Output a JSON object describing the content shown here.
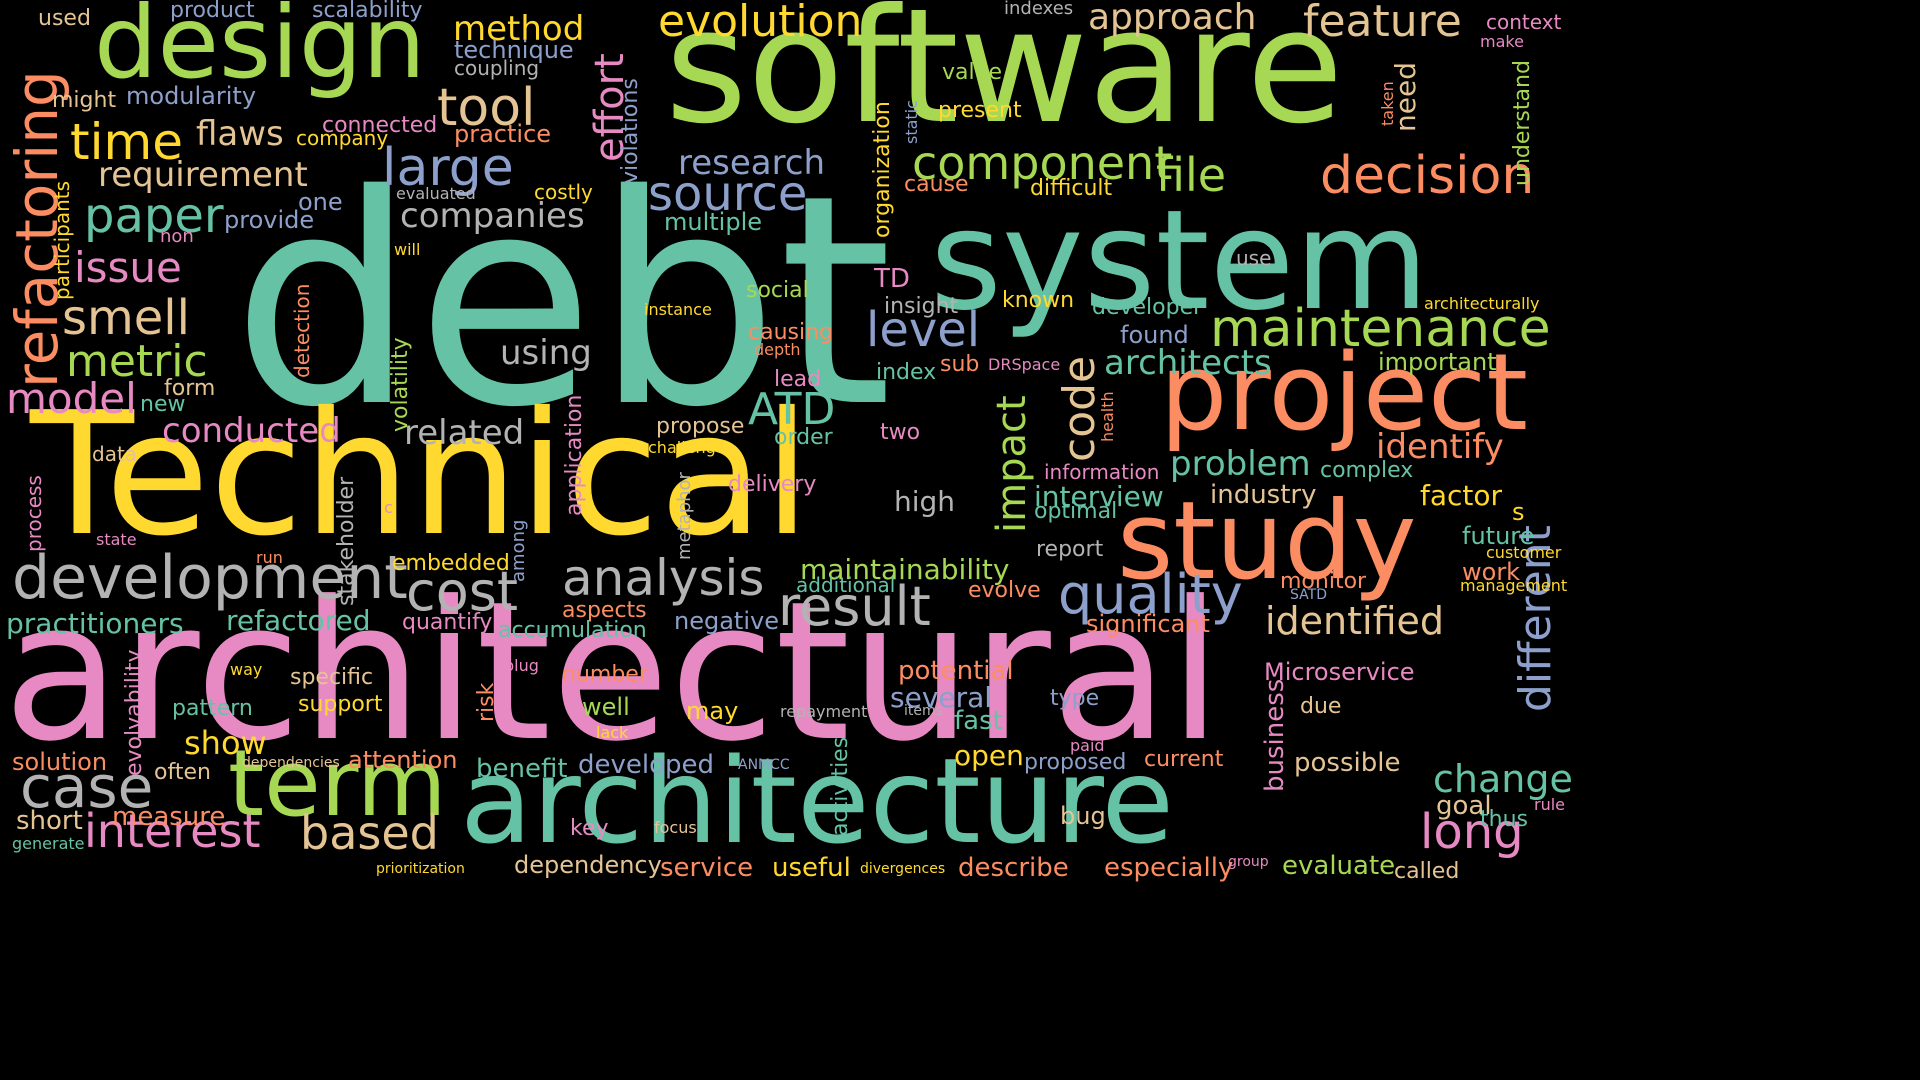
{
  "palette": {
    "background": "#000000",
    "teal": "#66c2a5",
    "orange": "#fc8d62",
    "blue": "#8da0cb",
    "pink": "#e78ac3",
    "green": "#a6d854",
    "yellow": "#ffd92f",
    "tan": "#e5c494",
    "gray": "#b3b3b3"
  },
  "words": [
    {
      "text": "debt",
      "color": "teal",
      "orientation": "horizontal"
    },
    {
      "text": "architectural",
      "color": "pink",
      "orientation": "horizontal"
    },
    {
      "text": "software",
      "color": "green",
      "orientation": "horizontal"
    },
    {
      "text": "Technical",
      "color": "yellow",
      "orientation": "horizontal"
    },
    {
      "text": "system",
      "color": "teal",
      "orientation": "horizontal"
    },
    {
      "text": "architecture",
      "color": "teal",
      "orientation": "horizontal"
    },
    {
      "text": "project",
      "color": "orange",
      "orientation": "horizontal"
    },
    {
      "text": "study",
      "color": "orange",
      "orientation": "horizontal"
    },
    {
      "text": "design",
      "color": "green",
      "orientation": "horizontal"
    },
    {
      "text": "term",
      "color": "green",
      "orientation": "horizontal"
    },
    {
      "text": "development",
      "color": "gray",
      "orientation": "horizontal"
    },
    {
      "text": "refactoring",
      "color": "orange",
      "orientation": "vertical"
    },
    {
      "text": "maintenance",
      "color": "green",
      "orientation": "horizontal"
    },
    {
      "text": "decision",
      "color": "orange",
      "orientation": "horizontal"
    },
    {
      "text": "component",
      "color": "green",
      "orientation": "horizontal"
    },
    {
      "text": "result",
      "color": "gray",
      "orientation": "horizontal"
    },
    {
      "text": "quality",
      "color": "blue",
      "orientation": "horizontal"
    },
    {
      "text": "analysis",
      "color": "gray",
      "orientation": "horizontal"
    },
    {
      "text": "cost",
      "color": "gray",
      "orientation": "horizontal"
    },
    {
      "text": "case",
      "color": "gray",
      "orientation": "horizontal"
    },
    {
      "text": "interest",
      "color": "pink",
      "orientation": "horizontal"
    },
    {
      "text": "based",
      "color": "tan",
      "orientation": "horizontal"
    },
    {
      "text": "long",
      "color": "pink",
      "orientation": "horizontal"
    },
    {
      "text": "large",
      "color": "blue",
      "orientation": "horizontal"
    },
    {
      "text": "source",
      "color": "blue",
      "orientation": "horizontal"
    },
    {
      "text": "evolution",
      "color": "yellow",
      "orientation": "horizontal"
    },
    {
      "text": "feature",
      "color": "tan",
      "orientation": "horizontal"
    },
    {
      "text": "tool",
      "color": "tan",
      "orientation": "horizontal"
    },
    {
      "text": "time",
      "color": "yellow",
      "orientation": "horizontal"
    },
    {
      "text": "paper",
      "color": "teal",
      "orientation": "horizontal"
    },
    {
      "text": "smell",
      "color": "tan",
      "orientation": "horizontal"
    },
    {
      "text": "metric",
      "color": "green",
      "orientation": "horizontal"
    },
    {
      "text": "issue",
      "color": "pink",
      "orientation": "horizontal"
    },
    {
      "text": "model",
      "color": "pink",
      "orientation": "horizontal"
    },
    {
      "text": "code",
      "color": "tan",
      "orientation": "vertical"
    },
    {
      "text": "impact",
      "color": "green",
      "orientation": "vertical"
    },
    {
      "text": "different",
      "color": "blue",
      "orientation": "vertical"
    },
    {
      "text": "effort",
      "color": "pink",
      "orientation": "vertical"
    },
    {
      "text": "level",
      "color": "blue",
      "orientation": "horizontal"
    },
    {
      "text": "ATD",
      "color": "teal",
      "orientation": "horizontal"
    },
    {
      "text": "file",
      "color": "green",
      "orientation": "horizontal"
    },
    {
      "text": "architects",
      "color": "teal",
      "orientation": "horizontal"
    },
    {
      "text": "identify",
      "color": "orange",
      "orientation": "horizontal"
    },
    {
      "text": "identified",
      "color": "tan",
      "orientation": "horizontal"
    },
    {
      "text": "change",
      "color": "teal",
      "orientation": "horizontal"
    },
    {
      "text": "problem",
      "color": "teal",
      "orientation": "horizontal"
    },
    {
      "text": "requirement",
      "color": "tan",
      "orientation": "horizontal"
    },
    {
      "text": "companies",
      "color": "gray",
      "orientation": "horizontal"
    },
    {
      "text": "research",
      "color": "blue",
      "orientation": "horizontal"
    },
    {
      "text": "approach",
      "color": "tan",
      "orientation": "horizontal"
    },
    {
      "text": "method",
      "color": "yellow",
      "orientation": "horizontal"
    },
    {
      "text": "flaws",
      "color": "tan",
      "orientation": "horizontal"
    },
    {
      "text": "conducted",
      "color": "pink",
      "orientation": "horizontal"
    },
    {
      "text": "related",
      "color": "gray",
      "orientation": "horizontal"
    },
    {
      "text": "using",
      "color": "gray",
      "orientation": "horizontal"
    },
    {
      "text": "practitioners",
      "color": "teal",
      "orientation": "horizontal"
    },
    {
      "text": "refactored",
      "color": "teal",
      "orientation": "horizontal"
    },
    {
      "text": "maintainability",
      "color": "green",
      "orientation": "horizontal"
    },
    {
      "text": "significant",
      "color": "orange",
      "orientation": "horizontal"
    },
    {
      "text": "interview",
      "color": "teal",
      "orientation": "horizontal"
    },
    {
      "text": "industry",
      "color": "tan",
      "orientation": "horizontal"
    },
    {
      "text": "factor",
      "color": "yellow",
      "orientation": "horizontal"
    },
    {
      "text": "show",
      "color": "yellow",
      "orientation": "horizontal"
    },
    {
      "text": "solution",
      "color": "orange",
      "orientation": "horizontal"
    },
    {
      "text": "short",
      "color": "tan",
      "orientation": "horizontal"
    },
    {
      "text": "measure",
      "color": "orange",
      "orientation": "horizontal"
    },
    {
      "text": "attention",
      "color": "orange",
      "orientation": "horizontal"
    },
    {
      "text": "benefit",
      "color": "teal",
      "orientation": "horizontal"
    },
    {
      "text": "developed",
      "color": "blue",
      "orientation": "horizontal"
    },
    {
      "text": "open",
      "color": "yellow",
      "orientation": "horizontal"
    },
    {
      "text": "several",
      "color": "blue",
      "orientation": "horizontal"
    },
    {
      "text": "fast",
      "color": "teal",
      "orientation": "horizontal"
    },
    {
      "text": "potential",
      "color": "orange",
      "orientation": "horizontal"
    },
    {
      "text": "Microservice",
      "color": "pink",
      "orientation": "horizontal"
    },
    {
      "text": "business",
      "color": "pink",
      "orientation": "vertical"
    },
    {
      "text": "possible",
      "color": "tan",
      "orientation": "horizontal"
    },
    {
      "text": "goal",
      "color": "tan",
      "orientation": "horizontal"
    },
    {
      "text": "evaluate",
      "color": "green",
      "orientation": "horizontal"
    },
    {
      "text": "especially",
      "color": "orange",
      "orientation": "horizontal"
    },
    {
      "text": "describe",
      "color": "orange",
      "orientation": "horizontal"
    },
    {
      "text": "service",
      "color": "orange",
      "orientation": "horizontal"
    },
    {
      "text": "useful",
      "color": "yellow",
      "orientation": "horizontal"
    },
    {
      "text": "dependency",
      "color": "tan",
      "orientation": "horizontal"
    },
    {
      "text": "key",
      "color": "pink",
      "orientation": "horizontal"
    },
    {
      "text": "bug",
      "color": "tan",
      "orientation": "horizontal"
    },
    {
      "text": "modularity",
      "color": "blue",
      "orientation": "horizontal"
    },
    {
      "text": "technique",
      "color": "blue",
      "orientation": "horizontal"
    },
    {
      "text": "coupling",
      "color": "gray",
      "orientation": "horizontal"
    },
    {
      "text": "product",
      "color": "blue",
      "orientation": "horizontal"
    },
    {
      "text": "scalability",
      "color": "blue",
      "orientation": "horizontal"
    },
    {
      "text": "used",
      "color": "tan",
      "orientation": "horizontal"
    },
    {
      "text": "might",
      "color": "tan",
      "orientation": "horizontal"
    },
    {
      "text": "connected",
      "color": "pink",
      "orientation": "horizontal"
    },
    {
      "text": "company",
      "color": "yellow",
      "orientation": "horizontal"
    },
    {
      "text": "practice",
      "color": "orange",
      "orientation": "horizontal"
    },
    {
      "text": "violations",
      "color": "blue",
      "orientation": "vertical"
    },
    {
      "text": "costly",
      "color": "yellow",
      "orientation": "horizontal"
    },
    {
      "text": "multiple",
      "color": "teal",
      "orientation": "horizontal"
    },
    {
      "text": "provide",
      "color": "blue",
      "orientation": "horizontal"
    },
    {
      "text": "one",
      "color": "blue",
      "orientation": "horizontal"
    },
    {
      "text": "non",
      "color": "pink",
      "orientation": "horizontal"
    },
    {
      "text": "participants",
      "color": "yellow",
      "orientation": "vertical"
    },
    {
      "text": "evaluated",
      "color": "gray",
      "orientation": "horizontal"
    },
    {
      "text": "will",
      "color": "yellow",
      "orientation": "horizontal"
    },
    {
      "text": "context",
      "color": "pink",
      "orientation": "horizontal"
    },
    {
      "text": "make",
      "color": "pink",
      "orientation": "horizontal"
    },
    {
      "text": "understand",
      "color": "green",
      "orientation": "vertical"
    },
    {
      "text": "taken",
      "color": "orange",
      "orientation": "vertical"
    },
    {
      "text": "need",
      "color": "tan",
      "orientation": "vertical"
    },
    {
      "text": "indexes",
      "color": "gray",
      "orientation": "horizontal"
    },
    {
      "text": "value",
      "color": "green",
      "orientation": "horizontal"
    },
    {
      "text": "present",
      "color": "yellow",
      "orientation": "horizontal"
    },
    {
      "text": "static",
      "color": "blue",
      "orientation": "vertical"
    },
    {
      "text": "organization",
      "color": "yellow",
      "orientation": "vertical"
    },
    {
      "text": "cause",
      "color": "orange",
      "orientation": "horizontal"
    },
    {
      "text": "difficult",
      "color": "yellow",
      "orientation": "horizontal"
    },
    {
      "text": "use",
      "color": "gray",
      "orientation": "horizontal"
    },
    {
      "text": "TD",
      "color": "pink",
      "orientation": "horizontal"
    },
    {
      "text": "insight",
      "color": "gray",
      "orientation": "horizontal"
    },
    {
      "text": "known",
      "color": "yellow",
      "orientation": "horizontal"
    },
    {
      "text": "developer",
      "color": "teal",
      "orientation": "horizontal"
    },
    {
      "text": "found",
      "color": "blue",
      "orientation": "horizontal"
    },
    {
      "text": "architecturally",
      "color": "yellow",
      "orientation": "horizontal"
    },
    {
      "text": "important",
      "color": "green",
      "orientation": "horizontal"
    },
    {
      "text": "social",
      "color": "green",
      "orientation": "horizontal"
    },
    {
      "text": "instance",
      "color": "yellow",
      "orientation": "horizontal"
    },
    {
      "text": "causing",
      "color": "orange",
      "orientation": "horizontal"
    },
    {
      "text": "depth",
      "color": "orange",
      "orientation": "horizontal"
    },
    {
      "text": "DRSpace",
      "color": "pink",
      "orientation": "horizontal"
    },
    {
      "text": "sub",
      "color": "orange",
      "orientation": "horizontal"
    },
    {
      "text": "index",
      "color": "teal",
      "orientation": "horizontal"
    },
    {
      "text": "lead",
      "color": "pink",
      "orientation": "horizontal"
    },
    {
      "text": "order",
      "color": "teal",
      "orientation": "horizontal"
    },
    {
      "text": "two",
      "color": "pink",
      "orientation": "horizontal"
    },
    {
      "text": "propose",
      "color": "tan",
      "orientation": "horizontal"
    },
    {
      "text": "challenge",
      "color": "yellow",
      "orientation": "horizontal"
    },
    {
      "text": "health",
      "color": "orange",
      "orientation": "vertical"
    },
    {
      "text": "information",
      "color": "pink",
      "orientation": "horizontal"
    },
    {
      "text": "complex",
      "color": "teal",
      "orientation": "horizontal"
    },
    {
      "text": "high",
      "color": "gray",
      "orientation": "horizontal"
    },
    {
      "text": "delivery",
      "color": "pink",
      "orientation": "horizontal"
    },
    {
      "text": "optimal",
      "color": "teal",
      "orientation": "horizontal"
    },
    {
      "text": "s",
      "color": "yellow",
      "orientation": "horizontal"
    },
    {
      "text": "report",
      "color": "gray",
      "orientation": "horizontal"
    },
    {
      "text": "future",
      "color": "teal",
      "orientation": "horizontal"
    },
    {
      "text": "customer",
      "color": "yellow",
      "orientation": "horizontal"
    },
    {
      "text": "work",
      "color": "orange",
      "orientation": "horizontal"
    },
    {
      "text": "management",
      "color": "yellow",
      "orientation": "horizontal"
    },
    {
      "text": "monitor",
      "color": "orange",
      "orientation": "horizontal"
    },
    {
      "text": "SATD",
      "color": "blue",
      "orientation": "horizontal"
    },
    {
      "text": "additional",
      "color": "teal",
      "orientation": "horizontal"
    },
    {
      "text": "evolve",
      "color": "orange",
      "orientation": "horizontal"
    },
    {
      "text": "form",
      "color": "tan",
      "orientation": "horizontal"
    },
    {
      "text": "new",
      "color": "teal",
      "orientation": "horizontal"
    },
    {
      "text": "data",
      "color": "tan",
      "orientation": "horizontal"
    },
    {
      "text": "process",
      "color": "pink",
      "orientation": "vertical"
    },
    {
      "text": "state",
      "color": "pink",
      "orientation": "horizontal"
    },
    {
      "text": "detection",
      "color": "orange",
      "orientation": "vertical"
    },
    {
      "text": "volatility",
      "color": "green",
      "orientation": "vertical"
    },
    {
      "text": "stakeholder",
      "color": "gray",
      "orientation": "vertical"
    },
    {
      "text": "c",
      "color": "pink",
      "orientation": "horizontal"
    },
    {
      "text": "run",
      "color": "orange",
      "orientation": "horizontal"
    },
    {
      "text": "among",
      "color": "blue",
      "orientation": "vertical"
    },
    {
      "text": "application",
      "color": "pink",
      "orientation": "vertical"
    },
    {
      "text": "metaphor",
      "color": "gray",
      "orientation": "vertical"
    },
    {
      "text": "embedded",
      "color": "yellow",
      "orientation": "horizontal"
    },
    {
      "text": "aspects",
      "color": "orange",
      "orientation": "horizontal"
    },
    {
      "text": "quantify",
      "color": "pink",
      "orientation": "horizontal"
    },
    {
      "text": "accumulation",
      "color": "teal",
      "orientation": "horizontal"
    },
    {
      "text": "negative",
      "color": "blue",
      "orientation": "horizontal"
    },
    {
      "text": "plug",
      "color": "pink",
      "orientation": "horizontal"
    },
    {
      "text": "number",
      "color": "orange",
      "orientation": "horizontal"
    },
    {
      "text": "risk",
      "color": "orange",
      "orientation": "vertical"
    },
    {
      "text": "well",
      "color": "green",
      "orientation": "horizontal"
    },
    {
      "text": "may",
      "color": "yellow",
      "orientation": "horizontal"
    },
    {
      "text": "specific",
      "color": "tan",
      "orientation": "horizontal"
    },
    {
      "text": "support",
      "color": "yellow",
      "orientation": "horizontal"
    },
    {
      "text": "pattern",
      "color": "teal",
      "orientation": "horizontal"
    },
    {
      "text": "way",
      "color": "yellow",
      "orientation": "horizontal"
    },
    {
      "text": "evolvability",
      "color": "pink",
      "orientation": "vertical"
    },
    {
      "text": "often",
      "color": "tan",
      "orientation": "horizontal"
    },
    {
      "text": "dependencies",
      "color": "tan",
      "orientation": "horizontal"
    },
    {
      "text": "lack",
      "color": "yellow",
      "orientation": "horizontal"
    },
    {
      "text": "repayment",
      "color": "gray",
      "orientation": "horizontal"
    },
    {
      "text": "items",
      "color": "gray",
      "orientation": "horizontal"
    },
    {
      "text": "type",
      "color": "blue",
      "orientation": "horizontal"
    },
    {
      "text": "due",
      "color": "tan",
      "orientation": "horizontal"
    },
    {
      "text": "paid",
      "color": "pink",
      "orientation": "horizontal"
    },
    {
      "text": "proposed",
      "color": "blue",
      "orientation": "horizontal"
    },
    {
      "text": "current",
      "color": "orange",
      "orientation": "horizontal"
    },
    {
      "text": "ANMCC",
      "color": "blue",
      "orientation": "horizontal"
    },
    {
      "text": "activities",
      "color": "teal",
      "orientation": "vertical"
    },
    {
      "text": "focus",
      "color": "tan",
      "orientation": "horizontal"
    },
    {
      "text": "divergences",
      "color": "yellow",
      "orientation": "horizontal"
    },
    {
      "text": "prioritization",
      "color": "yellow",
      "orientation": "horizontal"
    },
    {
      "text": "generate",
      "color": "teal",
      "orientation": "horizontal"
    },
    {
      "text": "group",
      "color": "pink",
      "orientation": "horizontal"
    },
    {
      "text": "called",
      "color": "tan",
      "orientation": "horizontal"
    },
    {
      "text": "thus",
      "color": "teal",
      "orientation": "horizontal"
    },
    {
      "text": "rule",
      "color": "pink",
      "orientation": "horizontal"
    }
  ]
}
